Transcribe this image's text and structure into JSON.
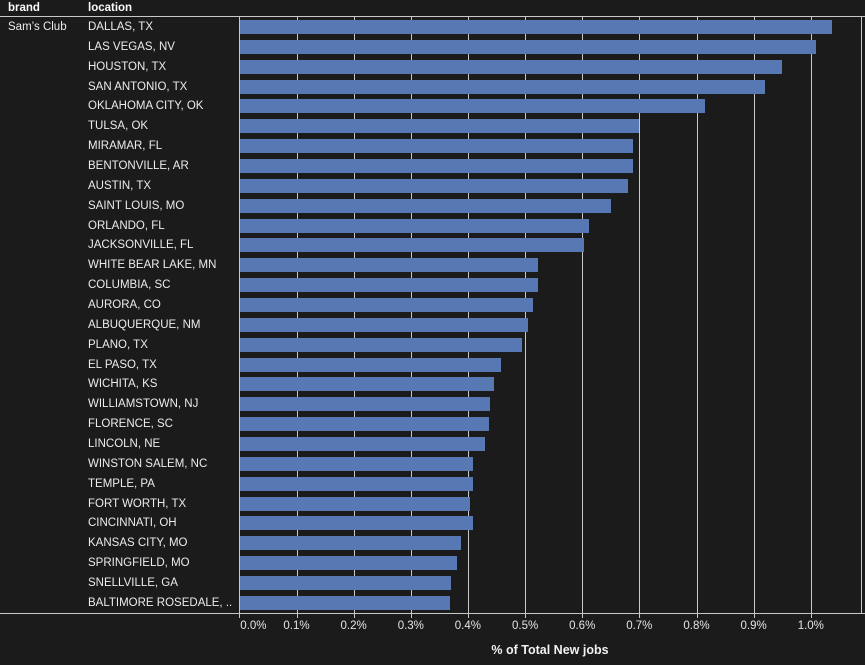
{
  "colors": {
    "background": "#1b1b1b",
    "bar": "#5878b4",
    "grid": "#c9c9c9",
    "text": "#e9e9e9"
  },
  "header": {
    "brand_label": "brand",
    "location_label": "location"
  },
  "chart_data": {
    "type": "bar",
    "orientation": "horizontal",
    "title": "",
    "xlabel": "% of Total New jobs",
    "ylabel": "location",
    "brand": "Sam’s Club",
    "xlim": [
      0,
      1.09
    ],
    "grid": true,
    "x_tick_labels": [
      "0.0%",
      "0.1%",
      "0.2%",
      "0.3%",
      "0.4%",
      "0.5%",
      "0.6%",
      "0.7%",
      "0.8%",
      "0.9%",
      "1.0%"
    ],
    "x_tick_values": [
      0,
      0.1,
      0.2,
      0.3,
      0.4,
      0.5,
      0.6,
      0.7,
      0.8,
      0.9,
      1.0
    ],
    "categories": [
      "DALLAS, TX",
      "LAS VEGAS, NV",
      "HOUSTON, TX",
      "SAN ANTONIO, TX",
      "OKLAHOMA CITY, OK",
      "TULSA, OK",
      "MIRAMAR, FL",
      "BENTONVILLE, AR",
      "AUSTIN, TX",
      "SAINT LOUIS, MO",
      "ORLANDO, FL",
      "JACKSONVILLE, FL",
      "WHITE BEAR LAKE, MN",
      "COLUMBIA, SC",
      "AURORA, CO",
      "ALBUQUERQUE, NM",
      "PLANO, TX",
      "EL PASO, TX",
      "WICHITA, KS",
      "WILLIAMSTOWN, NJ",
      "FLORENCE, SC",
      "LINCOLN, NE",
      "WINSTON SALEM, NC",
      "TEMPLE, PA",
      "FORT WORTH, TX",
      "CINCINNATI, OH",
      "KANSAS CITY, MO",
      "SPRINGFIELD, MO",
      "SNELLVILLE, GA",
      "BALTIMORE ROSEDALE, .."
    ],
    "values": [
      1.035,
      1.007,
      0.949,
      0.919,
      0.813,
      0.698,
      0.688,
      0.687,
      0.678,
      0.649,
      0.61,
      0.601,
      0.522,
      0.522,
      0.513,
      0.503,
      0.493,
      0.456,
      0.445,
      0.437,
      0.436,
      0.428,
      0.407,
      0.407,
      0.402,
      0.407,
      0.387,
      0.379,
      0.369,
      0.368
    ],
    "value_unit": "% of Total New jobs"
  }
}
